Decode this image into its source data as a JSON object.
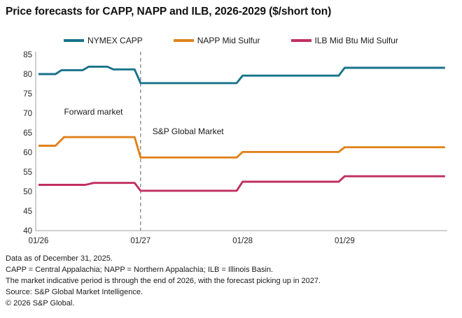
{
  "title": "Price forecasts for CAPP, NAPP and ILB, 2026-2029 ($/short ton)",
  "chart_data": {
    "type": "line",
    "title": "Price forecasts for CAPP, NAPP and ILB, 2026-2029 ($/short ton)",
    "xlabel": "",
    "ylabel": "$/short ton",
    "ylim": [
      40,
      85
    ],
    "y_ticks": [
      85,
      80,
      75,
      70,
      65,
      60,
      55,
      50,
      45,
      40
    ],
    "x_ticks": [
      {
        "label": "01/26",
        "month": 0
      },
      {
        "label": "01/27",
        "month": 12
      },
      {
        "label": "01/28",
        "month": 24
      },
      {
        "label": "01/29",
        "month": 36
      }
    ],
    "x_unit": "months_from_2026_01",
    "x_total_months": 47.8,
    "grid": false,
    "legend_position": "top",
    "divider": {
      "month": 12,
      "style": "dashed",
      "color": "#8c8c8c"
    },
    "annotations": [
      {
        "text": "Forward market",
        "month": 3.0,
        "value": 69.6
      },
      {
        "text": "S&P Global Market",
        "month": 13.4,
        "value": 64.6
      }
    ],
    "series": [
      {
        "name": "NYMEX CAPP",
        "color": "#17738a",
        "points": [
          [
            0,
            80
          ],
          [
            2,
            80
          ],
          [
            2.7,
            81
          ],
          [
            5.2,
            81
          ],
          [
            5.9,
            81.9
          ],
          [
            8.1,
            81.9
          ],
          [
            8.8,
            81.2
          ],
          [
            11.3,
            81.2
          ],
          [
            12,
            77.7
          ],
          [
            23.3,
            77.7
          ],
          [
            24,
            79.6
          ],
          [
            35.3,
            79.6
          ],
          [
            36,
            81.6
          ],
          [
            47.8,
            81.6
          ]
        ]
      },
      {
        "name": "NAPP Mid Sulfur",
        "color": "#e0821c",
        "points": [
          [
            0,
            61.7
          ],
          [
            2,
            61.7
          ],
          [
            3,
            63.9
          ],
          [
            11.3,
            63.9
          ],
          [
            12,
            58.7
          ],
          [
            23.3,
            58.7
          ],
          [
            24,
            60.1
          ],
          [
            35.3,
            60.1
          ],
          [
            36,
            61.3
          ],
          [
            47.8,
            61.3
          ]
        ]
      },
      {
        "name": "ILB Mid Btu Mid Sulfur",
        "color": "#c02f5f",
        "points": [
          [
            0,
            51.7
          ],
          [
            5.5,
            51.7
          ],
          [
            6.5,
            52.2
          ],
          [
            11.3,
            52.2
          ],
          [
            12,
            50.2
          ],
          [
            23.3,
            50.2
          ],
          [
            24,
            52.5
          ],
          [
            35.3,
            52.5
          ],
          [
            36,
            53.9
          ],
          [
            47.8,
            53.9
          ]
        ]
      }
    ]
  },
  "colors": {
    "teal": "#17738a",
    "orange": "#e0821c",
    "crimson": "#c02f5f",
    "axis": "#b3b3b3",
    "divider": "#8c8c8c",
    "tick_text": "#262626"
  },
  "footnotes": [
    "Data as of December 31, 2025.",
    "CAPP = Central Appalachia; NAPP = Northern Appalachia; ILB = Illinois Basin.",
    "The market indicative period is through the end of 2026, with the forecast picking up in 2027.",
    "Source: S&P Global Market Intelligence.",
    "© 2026 S&P Global."
  ]
}
